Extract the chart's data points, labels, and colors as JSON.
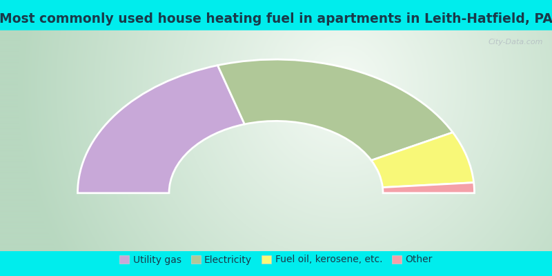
{
  "title": "Most commonly used house heating fuel in apartments in Leith-Hatfield, PA",
  "title_color": "#1a3a4a",
  "title_fontsize": 13.5,
  "fig_background": "#00eded",
  "chart_bg_corner": "#b0d8b8",
  "chart_bg_center": "#f0f8f0",
  "segments": [
    {
      "label": "Utility gas",
      "value": 40.5,
      "color": "#c8a8d8"
    },
    {
      "label": "Electricity",
      "value": 44.5,
      "color": "#b0c898"
    },
    {
      "label": "Fuel oil, kerosene, etc.",
      "value": 12.5,
      "color": "#f8f878"
    },
    {
      "label": "Other",
      "value": 2.5,
      "color": "#f4a0a8"
    }
  ],
  "legend_fontsize": 10,
  "watermark": "City-Data.com"
}
